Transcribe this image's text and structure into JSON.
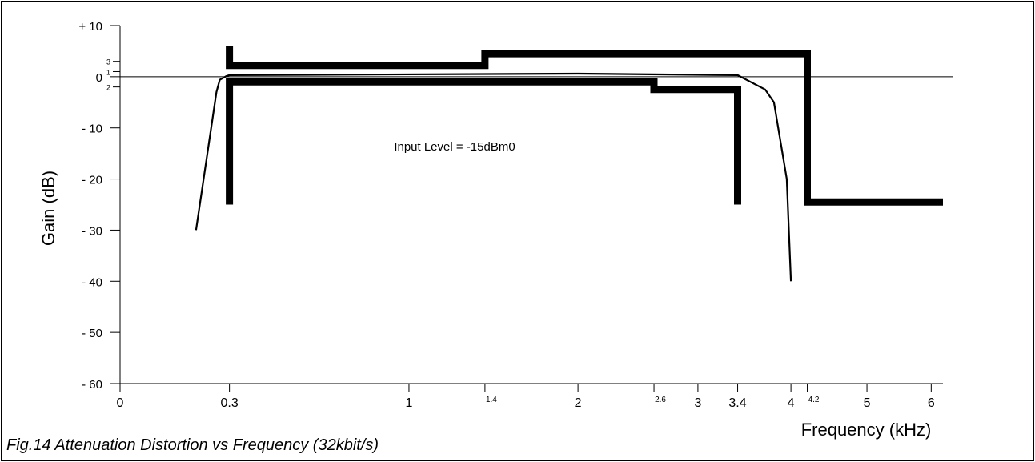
{
  "chart_data": {
    "type": "line",
    "caption": "Fig.14 Attenuation Distortion vs Frequency (32kbit/s)",
    "xlabel": "Frequency (kHz)",
    "ylabel": "Gain (dB)",
    "annotation": "Input Level = -15dBm0",
    "xscale": "log",
    "xlim": [
      0,
      6.2
    ],
    "ylim": [
      -60,
      10
    ],
    "x_ticks": [
      {
        "value": 0,
        "label": "0",
        "minor": false
      },
      {
        "value": 0.3,
        "label": "0.3",
        "minor": false
      },
      {
        "value": 1,
        "label": "1",
        "minor": false
      },
      {
        "value": 1.4,
        "label": "1.4",
        "minor": true
      },
      {
        "value": 2,
        "label": "2",
        "minor": false
      },
      {
        "value": 2.6,
        "label": "2.6",
        "minor": true
      },
      {
        "value": 3,
        "label": "3",
        "minor": false
      },
      {
        "value": 3.4,
        "label": "3.4",
        "minor": false
      },
      {
        "value": 4,
        "label": "4",
        "minor": false
      },
      {
        "value": 4.2,
        "label": "4.2",
        "minor": true
      },
      {
        "value": 5,
        "label": "5",
        "minor": false
      },
      {
        "value": 6,
        "label": "6",
        "minor": false
      }
    ],
    "y_ticks": [
      {
        "value": 10,
        "label": "+ 10",
        "minor": false
      },
      {
        "value": 3,
        "label": "3",
        "minor": true
      },
      {
        "value": 1,
        "label": "1",
        "minor": true
      },
      {
        "value": 0,
        "label": "0",
        "minor": false
      },
      {
        "value": -2,
        "label": "2",
        "minor": true
      },
      {
        "value": -10,
        "label": "- 10",
        "minor": false
      },
      {
        "value": -20,
        "label": "- 20",
        "minor": false
      },
      {
        "value": -30,
        "label": "- 30",
        "minor": false
      },
      {
        "value": -40,
        "label": "- 40",
        "minor": false
      },
      {
        "value": -50,
        "label": "- 50",
        "minor": false
      },
      {
        "value": -60,
        "label": "- 60",
        "minor": false
      }
    ],
    "series": [
      {
        "role": "upper-mask",
        "style": "thick",
        "points": [
          [
            0.3,
            6
          ],
          [
            0.3,
            2.2
          ],
          [
            1.4,
            2.2
          ],
          [
            1.4,
            4.5
          ],
          [
            4.2,
            4.5
          ],
          [
            4.2,
            -24.5
          ],
          [
            6.2,
            -24.5
          ]
        ]
      },
      {
        "role": "lower-mask",
        "style": "thick",
        "points": [
          [
            0.3,
            -25
          ],
          [
            0.3,
            -1
          ],
          [
            2.6,
            -1
          ],
          [
            2.6,
            -2.5
          ],
          [
            3.4,
            -2.5
          ],
          [
            3.4,
            -25
          ]
        ]
      },
      {
        "role": "response",
        "style": "thin",
        "points": [
          [
            0.2,
            -30
          ],
          [
            0.26,
            -3
          ],
          [
            0.27,
            -0.6
          ],
          [
            0.29,
            0.1
          ],
          [
            0.3,
            0.3
          ],
          [
            0.7,
            0.4
          ],
          [
            2.0,
            0.6
          ],
          [
            3.4,
            0.3
          ],
          [
            3.7,
            -2.5
          ],
          [
            3.8,
            -5
          ],
          [
            3.95,
            -20
          ],
          [
            4.0,
            -40
          ]
        ]
      }
    ],
    "zero_line": true,
    "grid": false
  }
}
